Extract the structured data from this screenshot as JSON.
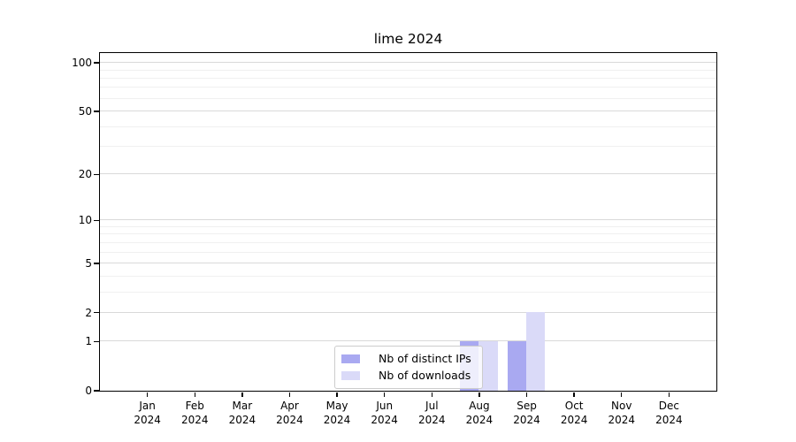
{
  "chart_data": {
    "type": "bar",
    "title": "lime 2024",
    "categories": [
      "Jan",
      "Feb",
      "Mar",
      "Apr",
      "May",
      "Jun",
      "Jul",
      "Aug",
      "Sep",
      "Oct",
      "Nov",
      "Dec"
    ],
    "year_label": "2024",
    "series": [
      {
        "name": "Nb of distinct IPs",
        "color": "#a9a9f1",
        "values": [
          0,
          0,
          0,
          0,
          0,
          0,
          0,
          1,
          1,
          0,
          0,
          0
        ]
      },
      {
        "name": "Nb of downloads",
        "color": "#dadaf8",
        "values": [
          0,
          0,
          0,
          0,
          0,
          0,
          0,
          1,
          2,
          0,
          0,
          0
        ]
      }
    ],
    "yscale": "log10(1+y)",
    "ylim": [
      0,
      115
    ],
    "y_major_ticks": [
      0,
      1,
      2,
      5,
      10,
      20,
      50,
      100
    ],
    "y_minor_ticks": [
      3,
      4,
      6,
      7,
      8,
      9,
      30,
      40,
      60,
      70,
      80,
      90
    ],
    "grid": "horizontal",
    "legend_position": "lower-center-inside"
  },
  "colors": {
    "major_grid": "#d9d9d9",
    "minor_grid": "#f0f0f0",
    "spine": "#000000",
    "legend_border": "#cccccc"
  }
}
